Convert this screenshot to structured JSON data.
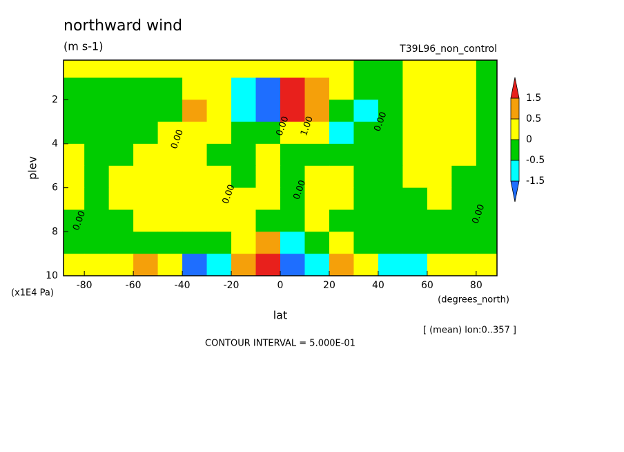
{
  "chart_data": {
    "type": "contour",
    "title": "northward wind",
    "subtitle": "(m s-1)",
    "dataset": "T39L96_non_control",
    "xlabel": "lat",
    "xunits": "(degrees_north)",
    "ylabel": "plev",
    "yunits": "(x1E4 Pa)",
    "note": "[ (mean) lon:0..357 ]",
    "footer": "CONTOUR INTERVAL = 5.000E-01",
    "xlim": [
      -88.5,
      88.5
    ],
    "xticks": [
      -80,
      -60,
      -40,
      -20,
      0,
      20,
      40,
      60,
      80
    ],
    "ylim": [
      10,
      0.2
    ],
    "yticks": [
      2,
      4,
      6,
      8,
      10
    ],
    "levels": [
      -1.5,
      -0.5,
      0,
      0.5,
      1.5
    ],
    "colors": [
      "#1e6eff",
      "#00ffff",
      "#00cc00",
      "#ffff00",
      "#f5a00a",
      "#e8201c"
    ],
    "lat": [
      -85,
      -75,
      -65,
      -55,
      -45,
      -35,
      -25,
      -15,
      -5,
      5,
      15,
      25,
      35,
      45,
      55,
      65,
      75,
      85
    ],
    "plev": [
      0.5,
      1.5,
      2.5,
      3.5,
      4.5,
      5.5,
      6.5,
      7.5,
      8.5,
      9.5
    ],
    "z": [
      [
        0.1,
        0.1,
        0.1,
        0.1,
        0.1,
        0.1,
        0.2,
        0.2,
        0.3,
        0.4,
        0.3,
        0.1,
        -0.1,
        -0.1,
        0.1,
        0.1,
        0.1,
        -0.1
      ],
      [
        -0.2,
        -0.2,
        -0.2,
        -0.2,
        -0.1,
        0.1,
        0.2,
        -0.8,
        -1.8,
        1.8,
        0.8,
        0.1,
        -0.2,
        -0.2,
        0.2,
        0.3,
        0.2,
        -0.1
      ],
      [
        -0.2,
        -0.3,
        -0.3,
        -0.2,
        -0.1,
        0.6,
        0.2,
        -0.7,
        -1.7,
        1.6,
        0.7,
        -0.1,
        -0.6,
        -0.2,
        0.2,
        0.2,
        0.2,
        -0.1
      ],
      [
        -0.2,
        -0.3,
        -0.2,
        -0.1,
        0.1,
        0.2,
        0.1,
        -0.1,
        -0.2,
        0.2,
        0.1,
        -0.6,
        -0.2,
        -0.1,
        0.2,
        0.2,
        0.1,
        -0.1
      ],
      [
        0.1,
        -0.2,
        -0.2,
        0.1,
        0.2,
        0.2,
        -0.1,
        -0.1,
        0.1,
        -0.1,
        -0.1,
        -0.1,
        -0.2,
        -0.2,
        0.2,
        0.2,
        0.1,
        -0.1
      ],
      [
        0.1,
        -0.2,
        0.2,
        0.2,
        0.2,
        0.1,
        0.1,
        -0.1,
        0.1,
        -0.1,
        0.1,
        0.1,
        -0.1,
        -0.2,
        0.2,
        0.2,
        -0.1,
        -0.1
      ],
      [
        0.1,
        -0.2,
        0.2,
        0.2,
        0.2,
        0.2,
        0.2,
        0.1,
        0.1,
        -0.1,
        0.1,
        0.1,
        -0.1,
        -0.2,
        -0.2,
        0.1,
        -0.1,
        -0.1
      ],
      [
        -0.1,
        -0.2,
        -0.1,
        0.1,
        0.2,
        0.1,
        0.1,
        0.1,
        -0.1,
        -0.1,
        0.1,
        -0.1,
        -0.2,
        -0.2,
        -0.2,
        -0.2,
        -0.1,
        -0.1
      ],
      [
        -0.1,
        -0.1,
        -0.1,
        -0.1,
        -0.1,
        -0.4,
        -0.3,
        0.4,
        1.2,
        -1.2,
        -0.4,
        0.3,
        -0.1,
        -0.1,
        -0.1,
        -0.1,
        -0.1,
        -0.1
      ],
      [
        0.1,
        0.1,
        0.2,
        0.8,
        0.2,
        -1.6,
        -0.6,
        1.2,
        2.0,
        -2.0,
        -0.8,
        1.0,
        0.3,
        -0.6,
        -0.6,
        0.1,
        0.1,
        0.1
      ]
    ],
    "contour_labels": [
      {
        "text": "0.00",
        "lat": -42,
        "plev": 3.8
      },
      {
        "text": "0.00",
        "lat": -21,
        "plev": 6.3
      },
      {
        "text": "0.00",
        "lat": -82,
        "plev": 7.5
      },
      {
        "text": "0.00",
        "lat": 1,
        "plev": 3.2
      },
      {
        "text": "0.00",
        "lat": 8,
        "plev": 6.1
      },
      {
        "text": "1.00",
        "lat": 11,
        "plev": 3.2
      },
      {
        "text": "0.00",
        "lat": 41,
        "plev": 3.0
      },
      {
        "text": "0.00",
        "lat": 81,
        "plev": 7.2
      }
    ]
  }
}
